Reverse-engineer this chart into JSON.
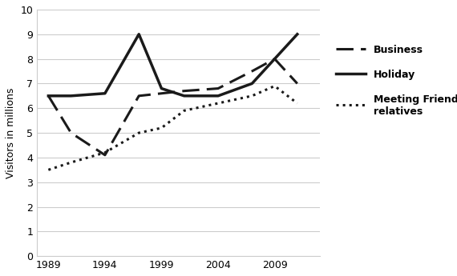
{
  "years": [
    1989,
    1991,
    1994,
    1997,
    1999,
    2001,
    2004,
    2007,
    2009,
    2011
  ],
  "business": [
    6.5,
    5.0,
    4.1,
    6.5,
    6.6,
    6.7,
    6.8,
    7.5,
    8.0,
    7.0
  ],
  "holiday": [
    6.5,
    6.5,
    6.6,
    9.0,
    6.8,
    6.5,
    6.5,
    7.0,
    8.0,
    9.0
  ],
  "meeting_friends": [
    3.5,
    3.8,
    4.2,
    5.0,
    5.2,
    5.9,
    6.2,
    6.5,
    6.9,
    6.2
  ],
  "ylabel": "Visitors in millions",
  "ylim": [
    0,
    10
  ],
  "yticks": [
    0,
    1,
    2,
    3,
    4,
    5,
    6,
    7,
    8,
    9,
    10
  ],
  "xticks": [
    1989,
    1994,
    1999,
    2004,
    2009
  ],
  "xlim": [
    1988,
    2013
  ],
  "legend_labels": [
    "Business",
    "Holiday",
    "Meeting Friends and\nrelatives"
  ],
  "line_color": "#1a1a1a",
  "bg_color": "#ffffff",
  "grid_color": "#cccccc"
}
